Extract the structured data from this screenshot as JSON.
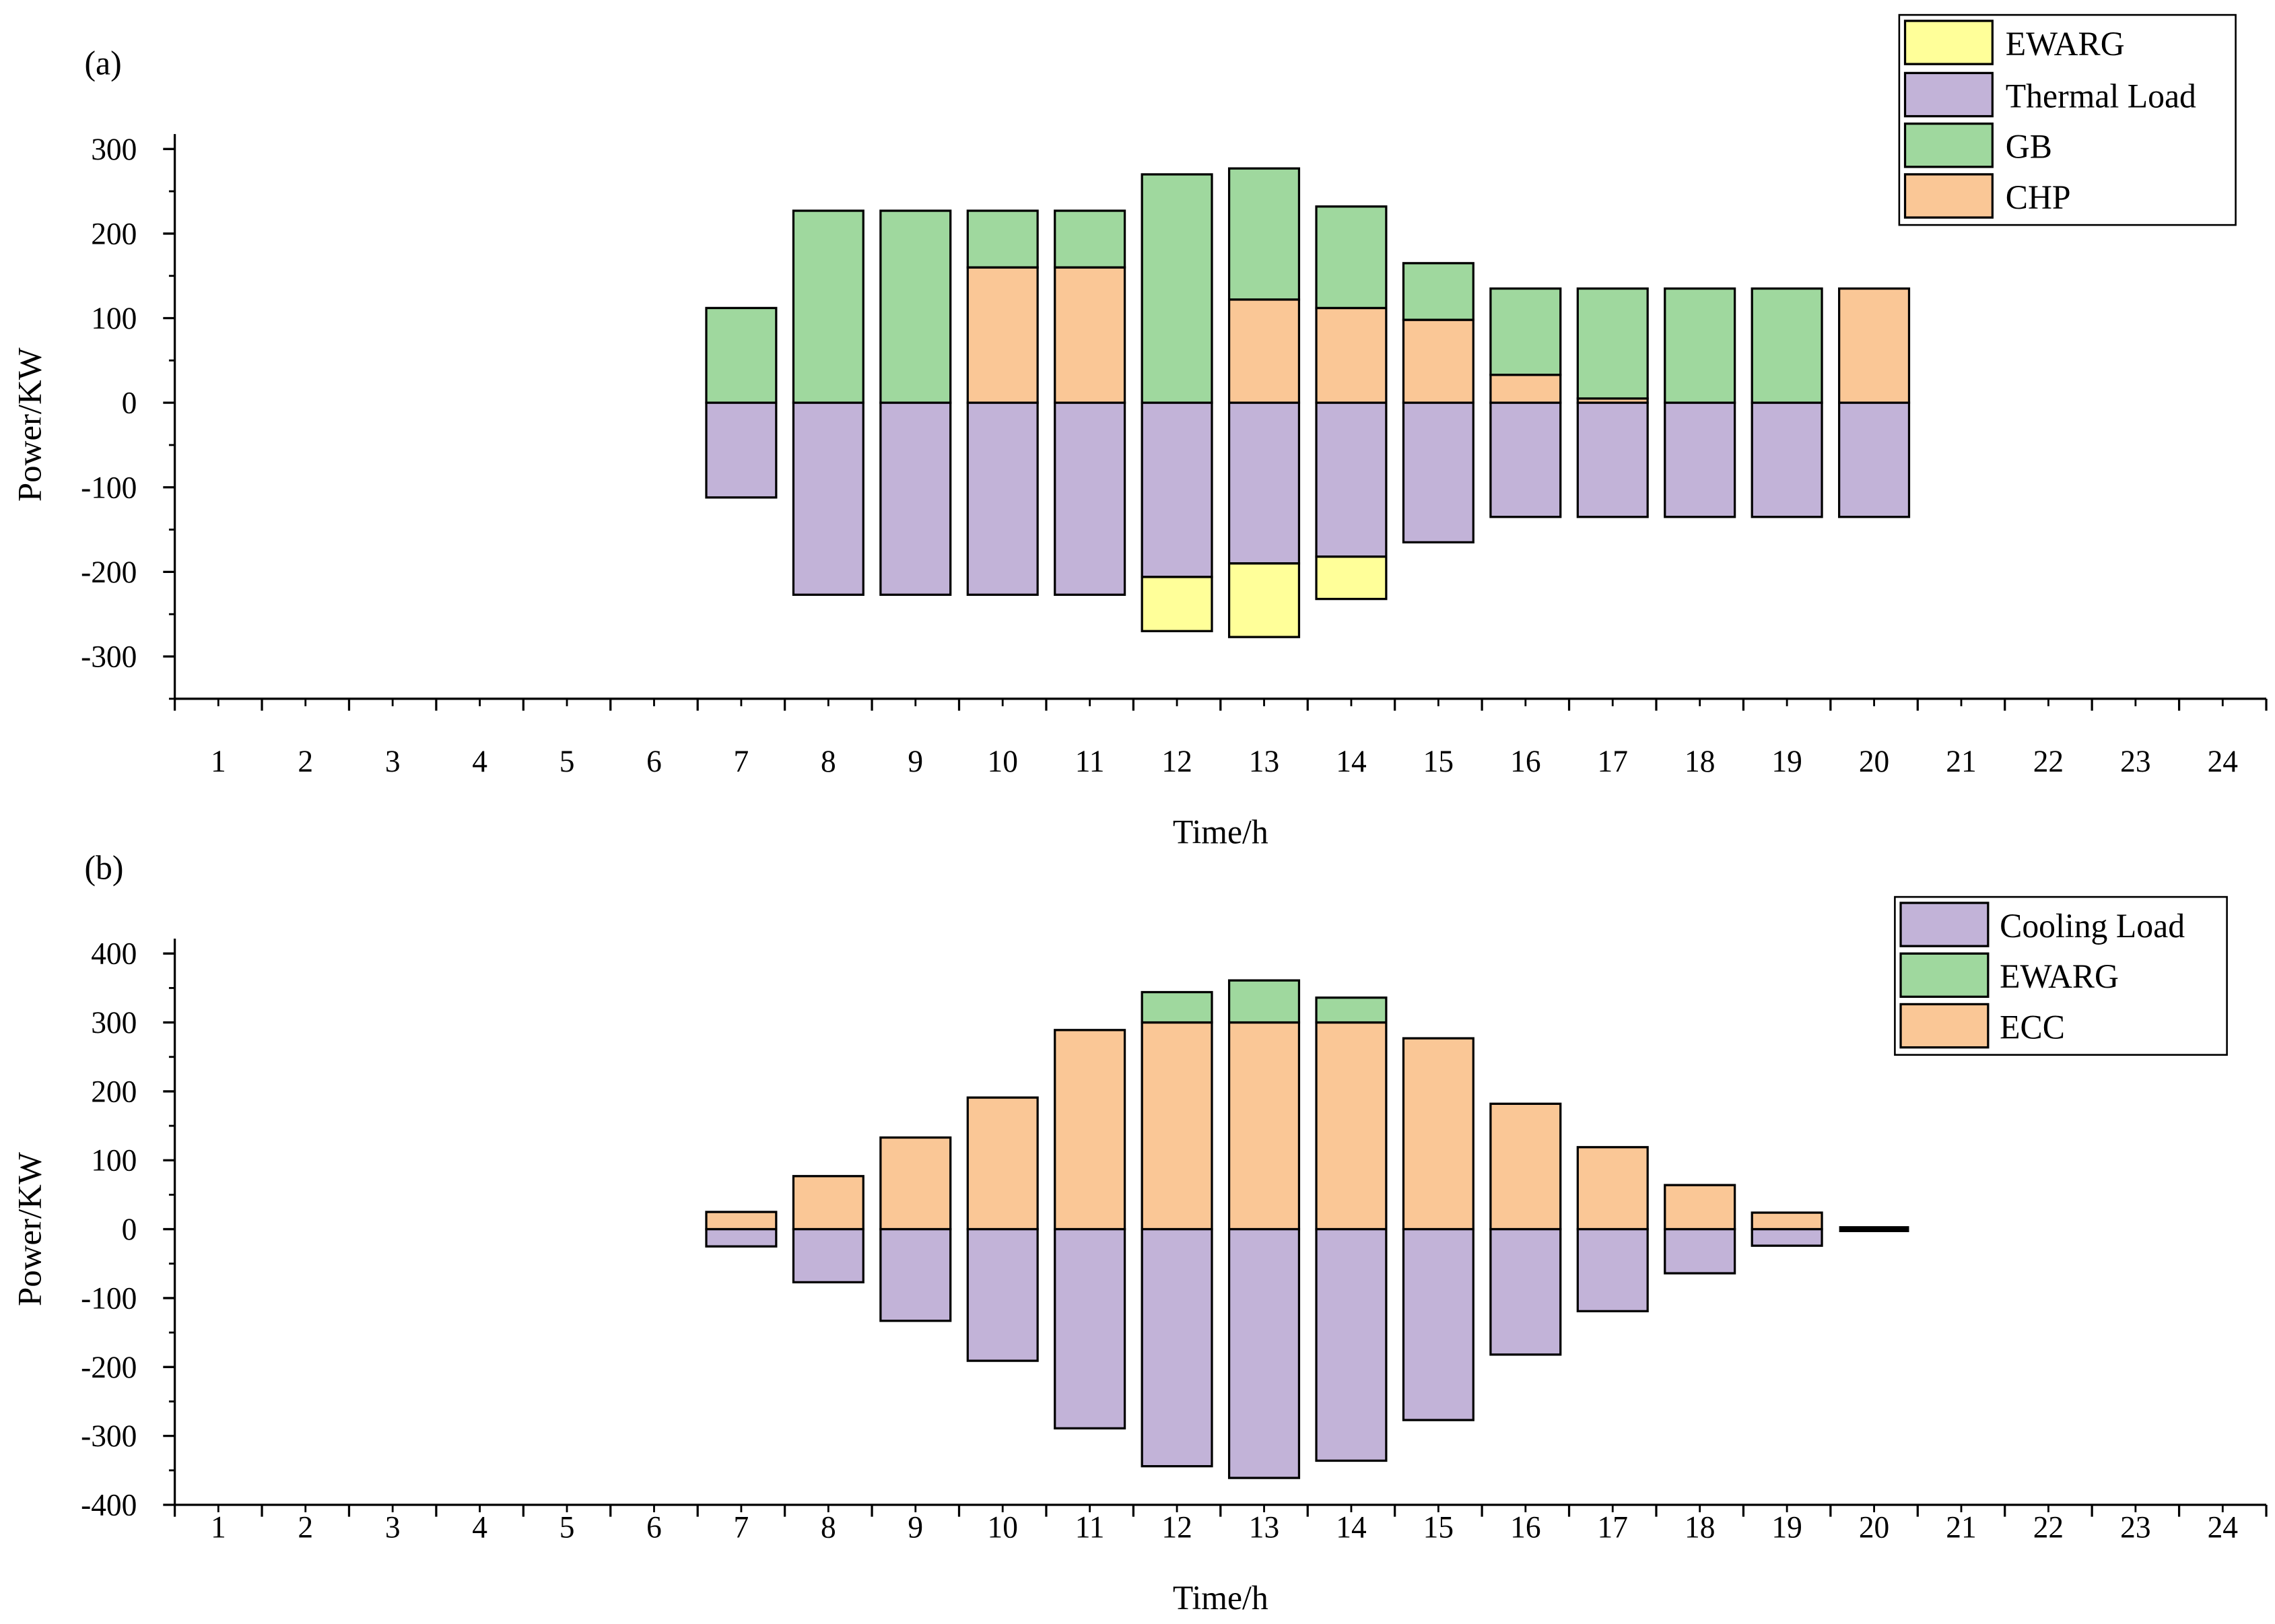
{
  "chart_data": [
    {
      "type": "bar",
      "stacked": true,
      "panel_label": "(a)",
      "xlabel": "Time/h",
      "ylabel": "Power/KW",
      "categories": [
        "1",
        "2",
        "3",
        "4",
        "5",
        "6",
        "7",
        "8",
        "9",
        "10",
        "11",
        "12",
        "13",
        "14",
        "15",
        "16",
        "17",
        "18",
        "19",
        "20",
        "21",
        "22",
        "23",
        "24"
      ],
      "xlim": [
        0.5,
        24.5
      ],
      "ylim": [
        -350,
        300
      ],
      "yticks": [
        -300,
        -200,
        -100,
        0,
        100,
        200,
        300
      ],
      "ytick_labels": [
        "-300",
        "-200",
        "-100",
        "0",
        "100",
        "200",
        "300"
      ],
      "legend_position": "top-right",
      "legend": [
        "EWARG",
        "Thermal Load",
        "GB",
        "CHP"
      ],
      "series": [
        {
          "name": "CHP",
          "color": "#FAC796",
          "values": [
            0,
            0,
            0,
            0,
            0,
            0,
            0,
            0,
            0,
            160,
            160,
            0,
            122,
            112,
            98,
            33,
            5,
            0,
            0,
            135,
            0,
            0,
            0,
            0
          ]
        },
        {
          "name": "GB",
          "color": "#9FD89E",
          "values": [
            0,
            0,
            0,
            0,
            0,
            0,
            112,
            227,
            227,
            67,
            67,
            270,
            155,
            120,
            67,
            102,
            130,
            135,
            135,
            0,
            0,
            0,
            0,
            0
          ]
        },
        {
          "name": "Thermal Load",
          "color": "#C2B3D8",
          "values": [
            0,
            0,
            0,
            0,
            0,
            0,
            -112,
            -227,
            -227,
            -227,
            -227,
            -206,
            -190,
            -182,
            -165,
            -135,
            -135,
            -135,
            -135,
            -135,
            0,
            0,
            0,
            0
          ]
        },
        {
          "name": "EWARG",
          "color": "#FFFF99",
          "values": [
            0,
            0,
            0,
            0,
            0,
            0,
            0,
            0,
            0,
            0,
            0,
            -64,
            -87,
            -50,
            0,
            0,
            0,
            0,
            0,
            0,
            0,
            0,
            0,
            0
          ]
        }
      ]
    },
    {
      "type": "bar",
      "stacked": true,
      "panel_label": "(b)",
      "xlabel": "Time/h",
      "ylabel": "Power/KW",
      "categories": [
        "1",
        "2",
        "3",
        "4",
        "5",
        "6",
        "7",
        "8",
        "9",
        "10",
        "11",
        "12",
        "13",
        "14",
        "15",
        "16",
        "17",
        "18",
        "19",
        "20",
        "21",
        "22",
        "23",
        "24"
      ],
      "xlim": [
        0.5,
        24.5
      ],
      "ylim": [
        -400,
        400
      ],
      "yticks": [
        -400,
        -300,
        -200,
        -100,
        0,
        100,
        200,
        300,
        400
      ],
      "ytick_labels": [
        "-400",
        "-300",
        "-200",
        "-100",
        "0",
        "100",
        "200",
        "300",
        "400"
      ],
      "legend_position": "top-right",
      "legend": [
        "Cooling Load",
        "EWARG",
        "ECC"
      ],
      "series": [
        {
          "name": "ECC",
          "color": "#FAC796",
          "values": [
            0,
            0,
            0,
            0,
            0,
            0,
            25,
            77,
            133,
            191,
            289,
            300,
            300,
            300,
            277,
            182,
            119,
            64,
            24,
            0,
            0,
            0,
            0,
            0
          ]
        },
        {
          "name": "EWARG",
          "color": "#9FD89E",
          "values": [
            0,
            0,
            0,
            0,
            0,
            0,
            0,
            0,
            0,
            0,
            0,
            44,
            61,
            36,
            0,
            0,
            0,
            0,
            0,
            0,
            0,
            0,
            0,
            0
          ]
        },
        {
          "name": "Cooling Load",
          "color": "#C2B3D8",
          "values": [
            0,
            0,
            0,
            0,
            0,
            0,
            -25,
            -77,
            -133,
            -191,
            -289,
            -344,
            -361,
            -336,
            -277,
            -182,
            -119,
            -64,
            -24,
            0,
            0,
            0,
            0,
            0
          ]
        }
      ]
    }
  ]
}
